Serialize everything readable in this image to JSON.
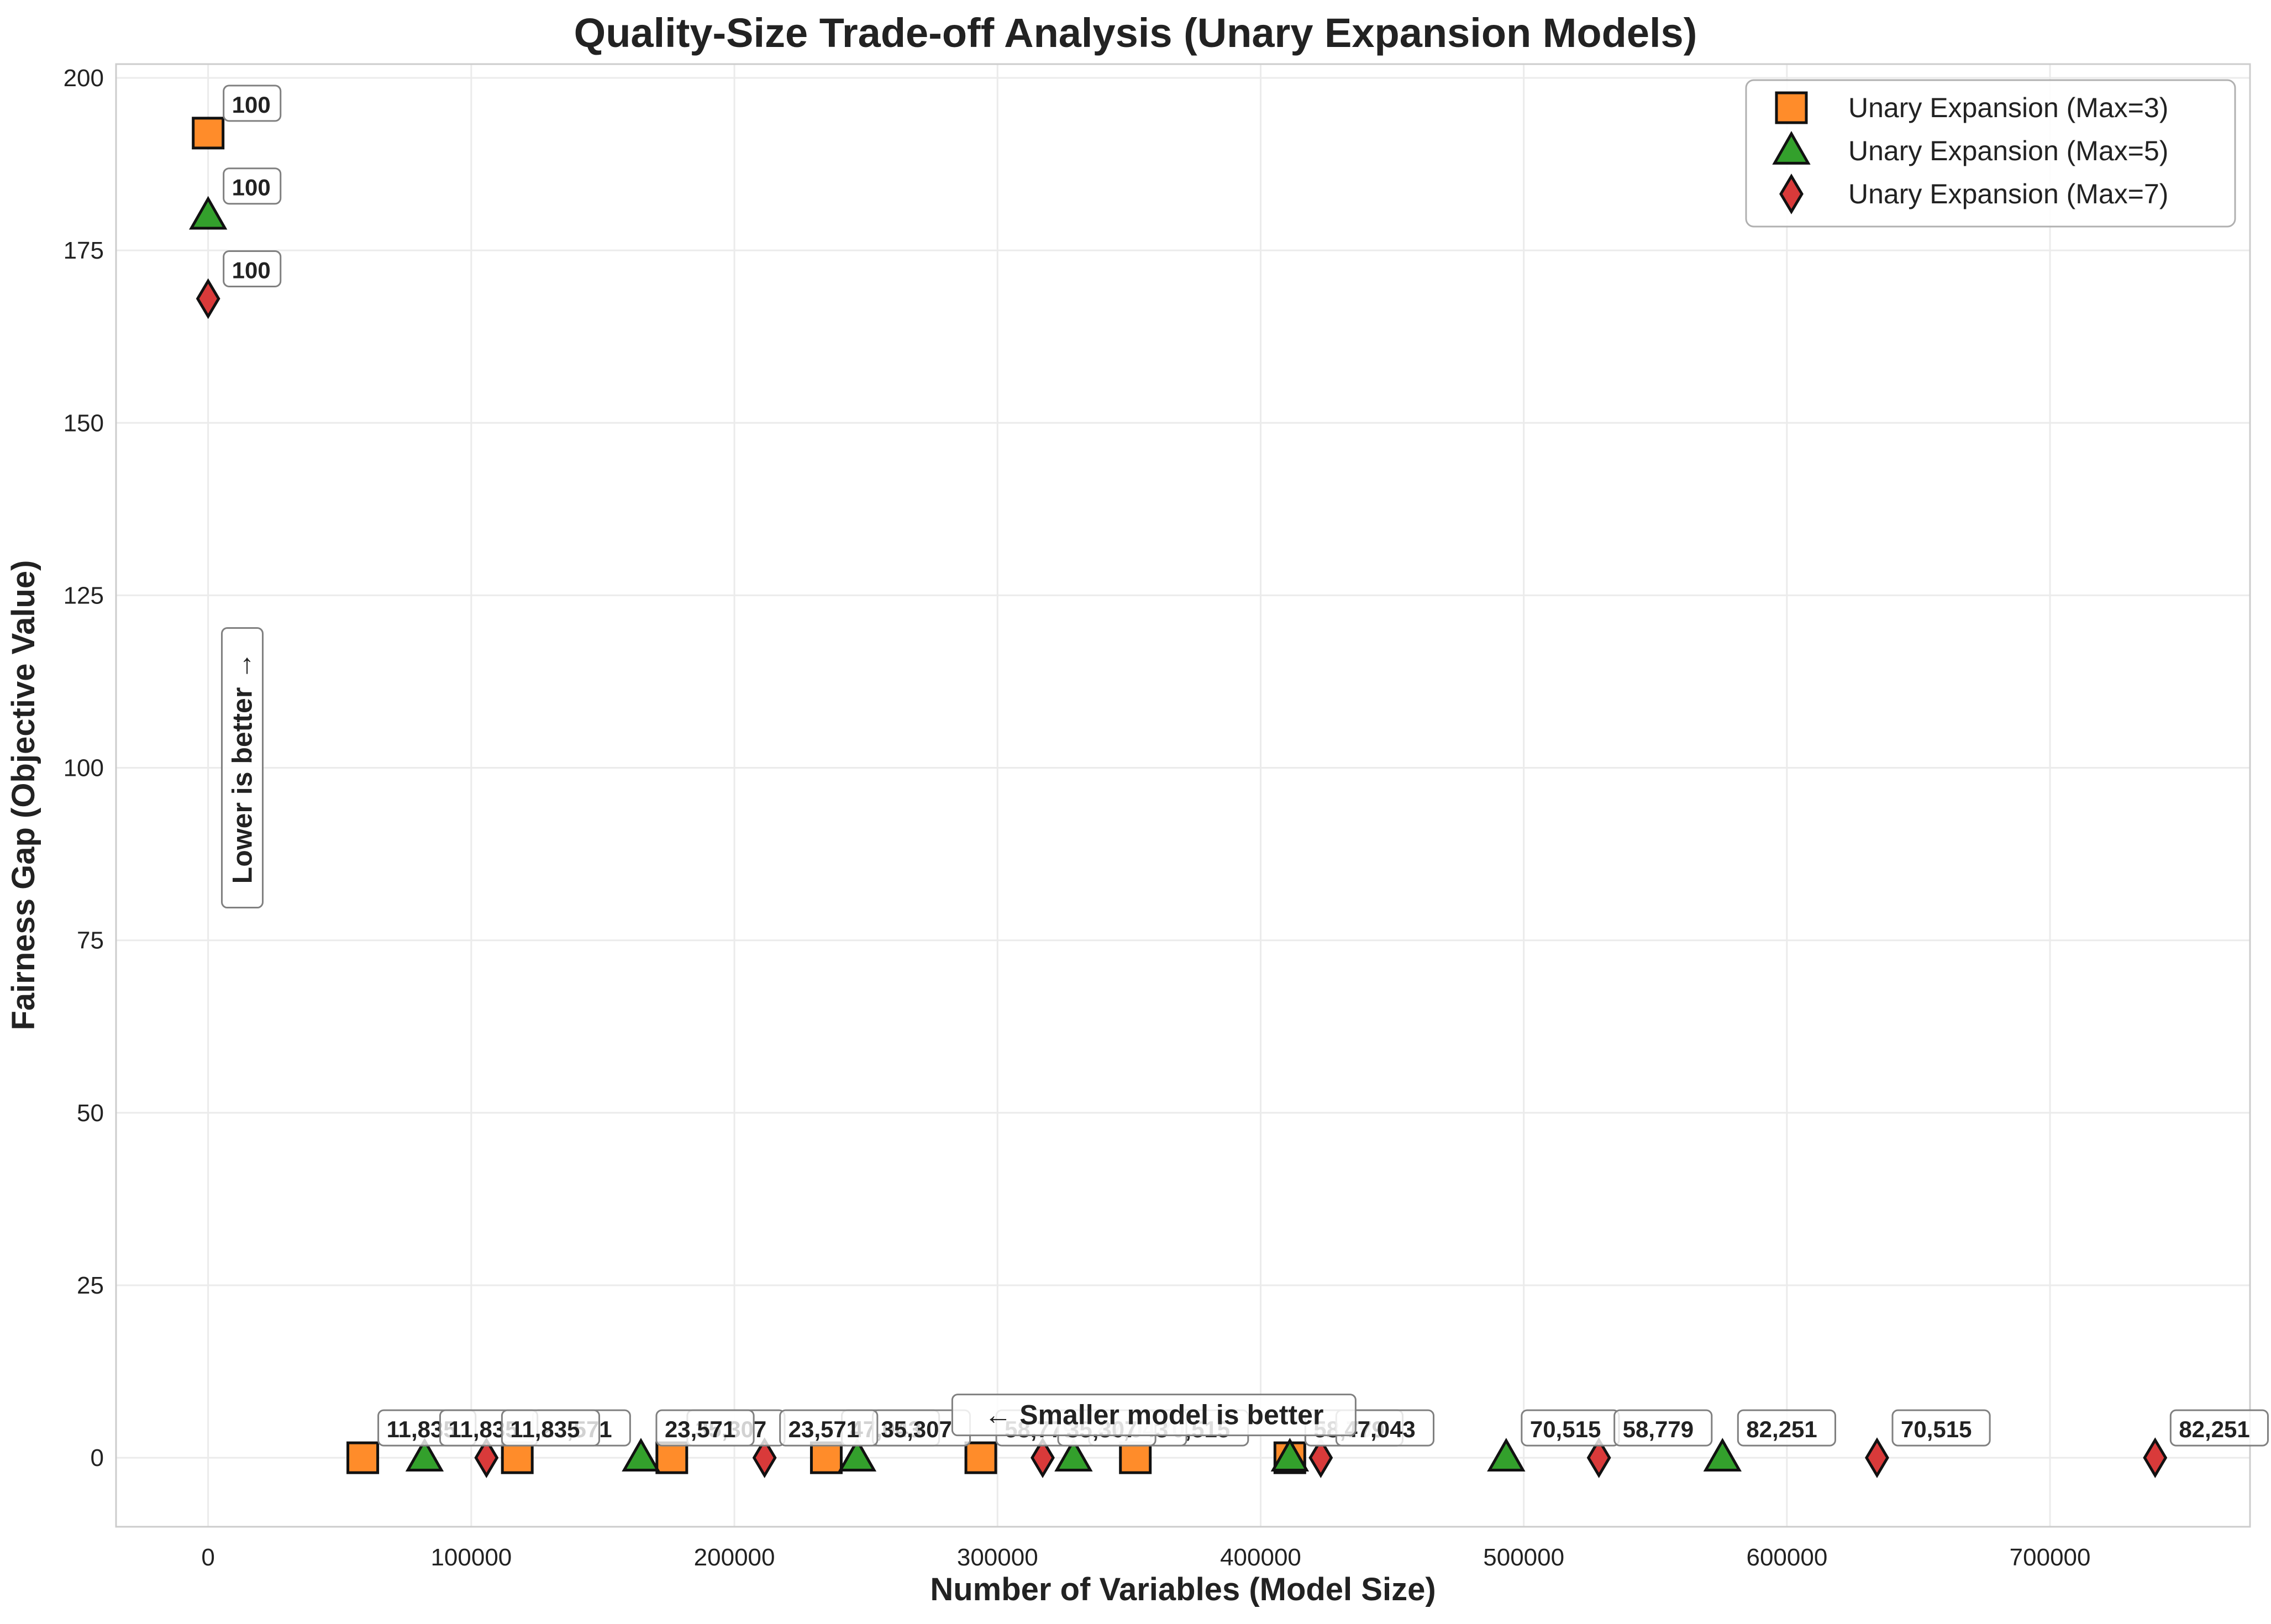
{
  "chart_data": {
    "type": "scatter",
    "title": "Quality-Size Trade-off Analysis (Unary Expansion Models)",
    "xlabel": "Number of Variables (Model Size)",
    "ylabel": "Fairness Gap (Objective Value)",
    "xlim": [
      -35000,
      776000
    ],
    "ylim": [
      -10,
      202
    ],
    "xticks": [
      0,
      100000,
      200000,
      300000,
      400000,
      500000,
      600000,
      700000
    ],
    "xtick_labels": [
      "0",
      "100000",
      "200000",
      "300000",
      "400000",
      "500000",
      "600000",
      "700000"
    ],
    "yticks": [
      0,
      25,
      50,
      75,
      100,
      125,
      150,
      175,
      200
    ],
    "ytick_labels": [
      "0",
      "25",
      "50",
      "75",
      "100",
      "125",
      "150",
      "175",
      "200"
    ],
    "grid": true,
    "legend_position": "top-right",
    "series": [
      {
        "name": "Unary Expansion (Max=3)",
        "marker": "square",
        "color": "#ff8c2a",
        "points": [
          {
            "x": 0,
            "y": 192,
            "label": "100"
          },
          {
            "x": 58779,
            "y": 0,
            "label": "11,835"
          },
          {
            "x": 117499,
            "y": 0,
            "label": "23,571"
          },
          {
            "x": 176219,
            "y": 0,
            "label": "35,307"
          },
          {
            "x": 234939,
            "y": 0,
            "label": "47,043"
          },
          {
            "x": 293659,
            "y": 0,
            "label": "58,779"
          },
          {
            "x": 352379,
            "y": 0,
            "label": "70,515"
          },
          {
            "x": 411099,
            "y": 0,
            "label": "82,251"
          }
        ]
      },
      {
        "name": "Unary Expansion (Max=5)",
        "marker": "triangle",
        "color": "#33a02c",
        "points": [
          {
            "x": 0,
            "y": 180,
            "label": "100"
          },
          {
            "x": 82275,
            "y": 0,
            "label": "11,835"
          },
          {
            "x": 164483,
            "y": 0,
            "label": "23,571"
          },
          {
            "x": 246691,
            "y": 0,
            "label": "35,307"
          },
          {
            "x": 328899,
            "y": 0,
            "label": "47,043"
          },
          {
            "x": 411107,
            "y": 0,
            "label": "58,779"
          },
          {
            "x": 493315,
            "y": 0,
            "label": "70,515"
          },
          {
            "x": 575523,
            "y": 0,
            "label": "82,251"
          }
        ]
      },
      {
        "name": "Unary Expansion (Max=7)",
        "marker": "diamond",
        "color": "#d93a3a",
        "points": [
          {
            "x": 0,
            "y": 168,
            "label": "100"
          },
          {
            "x": 105771,
            "y": 0,
            "label": "11,835"
          },
          {
            "x": 211467,
            "y": 0,
            "label": "23,571"
          },
          {
            "x": 317163,
            "y": 0,
            "label": "35,307"
          },
          {
            "x": 422859,
            "y": 0,
            "label": "47,043"
          },
          {
            "x": 528555,
            "y": 0,
            "label": "58,779"
          },
          {
            "x": 634251,
            "y": 0,
            "label": "70,515"
          },
          {
            "x": 739947,
            "y": 0,
            "label": "82,251"
          }
        ]
      }
    ],
    "annotations": [
      {
        "text": "Lower is better →",
        "orientation": "vertical",
        "x": 5000,
        "y": 100
      },
      {
        "text": "← Smaller model is better",
        "orientation": "horizontal",
        "x": 350000,
        "y": 3
      }
    ]
  }
}
